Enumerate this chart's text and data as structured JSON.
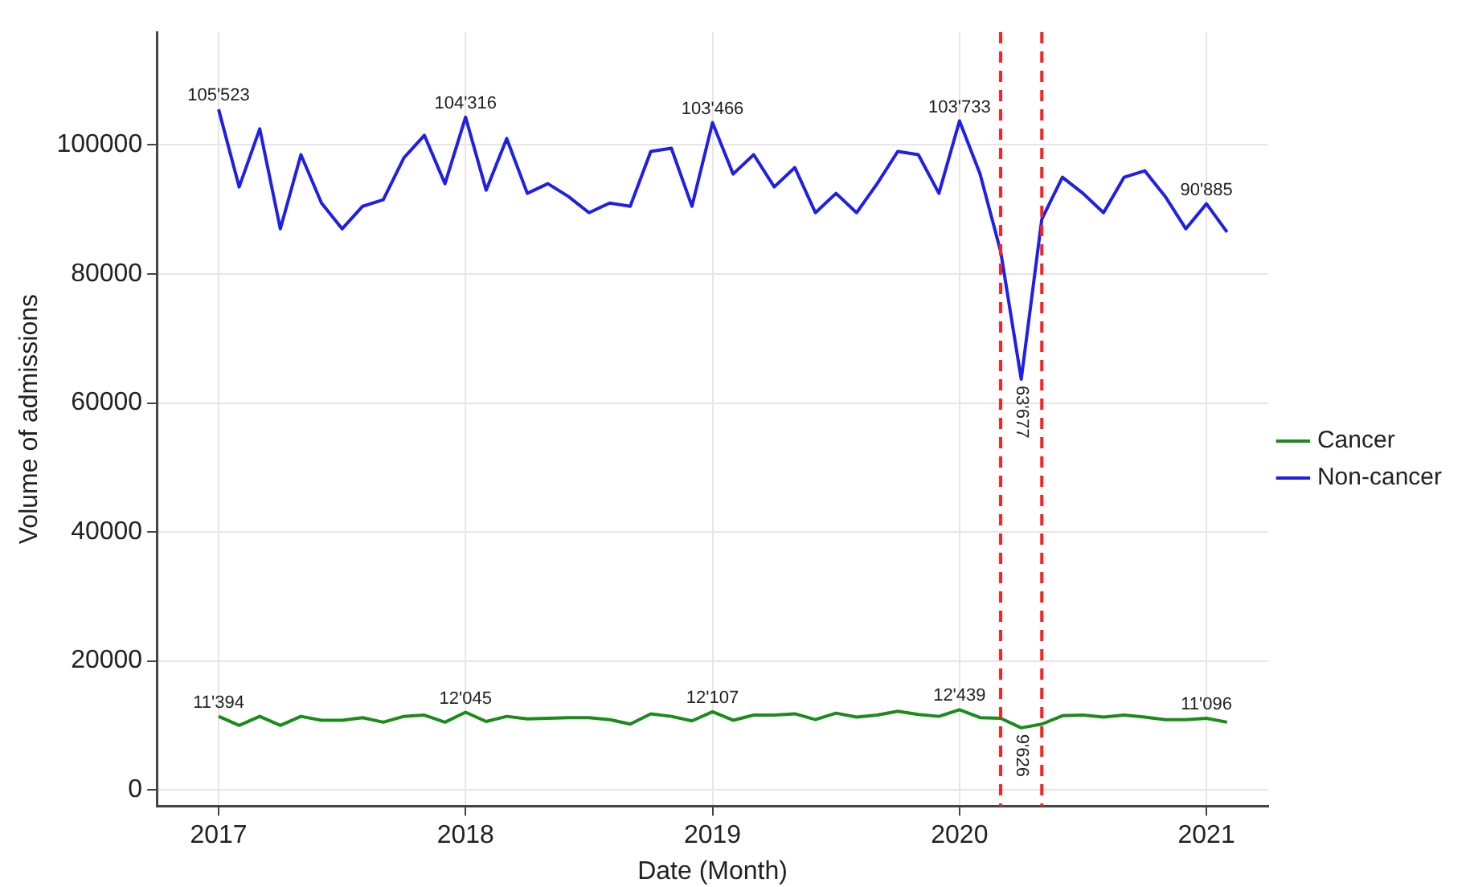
{
  "chart_data": {
    "type": "line",
    "xlabel": "Date (Month)",
    "ylabel": "Volume of admissions",
    "x": [
      "2017-01",
      "2017-02",
      "2017-03",
      "2017-04",
      "2017-05",
      "2017-06",
      "2017-07",
      "2017-08",
      "2017-09",
      "2017-10",
      "2017-11",
      "2017-12",
      "2018-01",
      "2018-02",
      "2018-03",
      "2018-04",
      "2018-05",
      "2018-06",
      "2018-07",
      "2018-08",
      "2018-09",
      "2018-10",
      "2018-11",
      "2018-12",
      "2019-01",
      "2019-02",
      "2019-03",
      "2019-04",
      "2019-05",
      "2019-06",
      "2019-07",
      "2019-08",
      "2019-09",
      "2019-10",
      "2019-11",
      "2019-12",
      "2020-01",
      "2020-02",
      "2020-03",
      "2020-04",
      "2020-05",
      "2020-06",
      "2020-07",
      "2020-08",
      "2020-09",
      "2020-10",
      "2020-11",
      "2020-12",
      "2021-01",
      "2021-02"
    ],
    "series": [
      {
        "name": "Cancer",
        "color": "#1a8c1a",
        "values": [
          11394,
          10000,
          11400,
          10000,
          11400,
          10800,
          10800,
          11200,
          10500,
          11400,
          11600,
          10500,
          12045,
          10600,
          11400,
          11000,
          11100,
          11200,
          11200,
          10900,
          10200,
          11800,
          11400,
          10700,
          12107,
          10800,
          11600,
          11600,
          11800,
          10900,
          11900,
          11300,
          11600,
          12200,
          11700,
          11400,
          12439,
          11200,
          11100,
          9626,
          10200,
          11500,
          11600,
          11300,
          11600,
          11300,
          10900,
          10900,
          11096,
          10500
        ],
        "value_labels": [
          "11'394",
          null,
          null,
          null,
          null,
          null,
          null,
          null,
          null,
          null,
          null,
          null,
          "12'045",
          null,
          null,
          null,
          null,
          null,
          null,
          null,
          null,
          null,
          null,
          null,
          "12'107",
          null,
          null,
          null,
          null,
          null,
          null,
          null,
          null,
          null,
          null,
          null,
          "12'439",
          null,
          null,
          "9'626",
          null,
          null,
          null,
          null,
          null,
          null,
          null,
          null,
          "11'096",
          null
        ]
      },
      {
        "name": "Non-cancer",
        "color": "#1f1fe6",
        "values": [
          105523,
          93500,
          102500,
          87000,
          98500,
          91000,
          87000,
          90500,
          91500,
          98000,
          101500,
          94000,
          104316,
          93000,
          101000,
          92500,
          94000,
          92000,
          89500,
          91000,
          90500,
          99000,
          99500,
          90500,
          103466,
          95500,
          98500,
          93500,
          96500,
          89500,
          92500,
          89500,
          94000,
          99000,
          98500,
          92500,
          103733,
          95500,
          83500,
          63677,
          88500,
          95000,
          92500,
          89500,
          95000,
          96000,
          92000,
          87000,
          90885,
          86500
        ],
        "value_labels": [
          "105'523",
          null,
          null,
          null,
          null,
          null,
          null,
          null,
          null,
          null,
          null,
          null,
          "104'316",
          null,
          null,
          null,
          null,
          null,
          null,
          null,
          null,
          null,
          null,
          null,
          "103'466",
          null,
          null,
          null,
          null,
          null,
          null,
          null,
          null,
          null,
          null,
          null,
          "103'733",
          null,
          null,
          "63'677",
          null,
          null,
          null,
          null,
          null,
          null,
          null,
          null,
          "90'885",
          null
        ]
      }
    ],
    "xlim": [
      "2016-10",
      "2021-04"
    ],
    "xticks": [
      "2017",
      "2018",
      "2019",
      "2020",
      "2021"
    ],
    "ylim": [
      -2500,
      117500
    ],
    "yticks": [
      0,
      20000,
      40000,
      60000,
      80000,
      100000
    ],
    "ref_lines": [
      {
        "axis": "x",
        "value": "2020-03",
        "color": "#ff2020",
        "line_style": "dashed"
      },
      {
        "axis": "x",
        "value": "2020-05",
        "color": "#ff2020",
        "line_style": "dashed"
      }
    ],
    "grid": true,
    "legend": "right",
    "marker": "none",
    "line_style": "solid"
  }
}
